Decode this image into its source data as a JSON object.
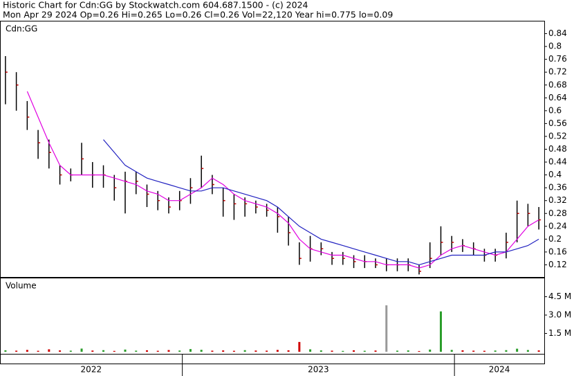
{
  "chart_data": {
    "type": "ohlc",
    "title": "Historic Chart for Cdn:GG by Stockwatch.com 604.687.1500 - (c) 2024",
    "subtitle": "Mon Apr 29 2024  Op=0.26  Hi=0.265  Lo=0.26  Cl=0.26  Vol=22,120  Year hi=0.775  lo=0.09",
    "symbol_label": "Cdn:GG",
    "volume_label": "Volume",
    "x": [
      2022.35,
      2022.39,
      2022.43,
      2022.47,
      2022.51,
      2022.55,
      2022.59,
      2022.63,
      2022.67,
      2022.71,
      2022.75,
      2022.79,
      2022.83,
      2022.87,
      2022.91,
      2022.95,
      2022.99,
      2023.03,
      2023.07,
      2023.11,
      2023.15,
      2023.19,
      2023.23,
      2023.27,
      2023.31,
      2023.35,
      2023.39,
      2023.43,
      2023.47,
      2023.51,
      2023.55,
      2023.59,
      2023.63,
      2023.67,
      2023.71,
      2023.75,
      2023.79,
      2023.83,
      2023.87,
      2023.91,
      2023.95,
      2023.99,
      2024.03,
      2024.07,
      2024.11,
      2024.15,
      2024.19,
      2024.23,
      2024.27,
      2024.31
    ],
    "xlim": [
      2022.33,
      2024.33
    ],
    "xticks": [
      2023,
      2024
    ],
    "periods": [
      "2022",
      "2023",
      "2024"
    ],
    "high": [
      0.77,
      0.72,
      0.63,
      0.54,
      0.51,
      0.43,
      0.42,
      0.5,
      0.44,
      0.43,
      0.4,
      0.41,
      0.41,
      0.37,
      0.35,
      0.33,
      0.35,
      0.39,
      0.46,
      0.4,
      0.36,
      0.34,
      0.33,
      0.32,
      0.31,
      0.3,
      0.27,
      0.19,
      0.21,
      0.19,
      0.16,
      0.16,
      0.15,
      0.15,
      0.14,
      0.14,
      0.14,
      0.14,
      0.12,
      0.19,
      0.24,
      0.21,
      0.2,
      0.19,
      0.17,
      0.17,
      0.22,
      0.32,
      0.31,
      0.3
    ],
    "low": [
      0.62,
      0.6,
      0.54,
      0.45,
      0.42,
      0.37,
      0.38,
      0.4,
      0.36,
      0.36,
      0.32,
      0.28,
      0.34,
      0.3,
      0.29,
      0.28,
      0.29,
      0.31,
      0.36,
      0.34,
      0.27,
      0.26,
      0.27,
      0.28,
      0.27,
      0.22,
      0.18,
      0.12,
      0.13,
      0.15,
      0.12,
      0.12,
      0.11,
      0.11,
      0.11,
      0.1,
      0.1,
      0.1,
      0.09,
      0.11,
      0.15,
      0.16,
      0.16,
      0.15,
      0.13,
      0.13,
      0.14,
      0.19,
      0.24,
      0.23
    ],
    "close": [
      0.72,
      0.68,
      0.58,
      0.5,
      0.47,
      0.4,
      0.4,
      0.45,
      0.4,
      0.4,
      0.36,
      0.38,
      0.38,
      0.34,
      0.32,
      0.3,
      0.32,
      0.36,
      0.42,
      0.37,
      0.32,
      0.31,
      0.31,
      0.3,
      0.29,
      0.27,
      0.22,
      0.14,
      0.17,
      0.17,
      0.14,
      0.14,
      0.13,
      0.13,
      0.12,
      0.12,
      0.12,
      0.12,
      0.1,
      0.14,
      0.19,
      0.19,
      0.18,
      0.17,
      0.15,
      0.15,
      0.19,
      0.28,
      0.28,
      0.26
    ],
    "ma_short": {
      "color": "#e000e0",
      "values": [
        null,
        null,
        0.66,
        0.58,
        0.5,
        0.43,
        0.4,
        0.4,
        0.4,
        0.4,
        0.39,
        0.38,
        0.37,
        0.35,
        0.34,
        0.32,
        0.32,
        0.34,
        0.36,
        0.39,
        0.37,
        0.34,
        0.32,
        0.31,
        0.3,
        0.28,
        0.25,
        0.2,
        0.17,
        0.16,
        0.15,
        0.15,
        0.14,
        0.13,
        0.13,
        0.12,
        0.12,
        0.12,
        0.11,
        0.12,
        0.15,
        0.17,
        0.18,
        0.17,
        0.16,
        0.15,
        0.16,
        0.2,
        0.24,
        0.26
      ]
    },
    "ma_long": {
      "color": "#2020c0",
      "values": [
        null,
        null,
        null,
        null,
        null,
        null,
        null,
        null,
        null,
        0.51,
        0.47,
        0.43,
        0.41,
        0.39,
        0.38,
        0.37,
        0.36,
        0.35,
        0.35,
        0.36,
        0.36,
        0.35,
        0.34,
        0.33,
        0.32,
        0.3,
        0.27,
        0.24,
        0.22,
        0.2,
        0.19,
        0.18,
        0.17,
        0.16,
        0.15,
        0.14,
        0.13,
        0.13,
        0.12,
        0.13,
        0.14,
        0.15,
        0.15,
        0.15,
        0.15,
        0.16,
        0.16,
        0.17,
        0.18,
        0.2
      ]
    },
    "volume": [
      120000,
      90000,
      150000,
      80000,
      200000,
      110000,
      90000,
      260000,
      100000,
      130000,
      70000,
      180000,
      90000,
      120000,
      80000,
      140000,
      100000,
      220000,
      160000,
      90000,
      110000,
      80000,
      130000,
      100000,
      90000,
      150000,
      120000,
      800000,
      200000,
      110000,
      90000,
      70000,
      120000,
      80000,
      100000,
      3800000,
      90000,
      110000,
      60000,
      180000,
      3300000,
      150000,
      120000,
      90000,
      80000,
      100000,
      130000,
      250000,
      140000,
      110000
    ],
    "ylim": [
      0.08,
      0.88
    ],
    "yticks": [
      0.12,
      0.16,
      0.2,
      0.24,
      0.28,
      0.32,
      0.36,
      0.4,
      0.44,
      0.48,
      0.52,
      0.56,
      0.6,
      0.64,
      0.68,
      0.72,
      0.76,
      0.8,
      0.84
    ],
    "vol_ylim": [
      0,
      6000000
    ],
    "vol_yticks": [
      {
        "value": 1500000,
        "label": "1.5 M"
      },
      {
        "value": 3000000,
        "label": "3.0 M"
      },
      {
        "value": 4500000,
        "label": "4.5 M"
      }
    ]
  }
}
